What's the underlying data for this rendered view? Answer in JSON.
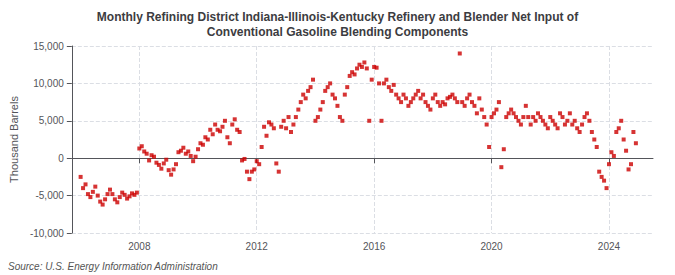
{
  "chart_data": {
    "type": "scatter",
    "title": "Monthly Refining District Indiana-Illinois-Kentucky Refinery and Blender Net Input of\nConventional Gasoline Blending Components",
    "ylabel": "Thousand Barrels",
    "annotations": [
      "Source: U.S. Energy Information Administration"
    ],
    "color": "#CC0000",
    "marker": "square",
    "grid": true,
    "xlim": [
      2005.7,
      2025.5
    ],
    "xticks": [
      2008,
      2012,
      2016,
      2020,
      2024
    ],
    "ylim": [
      -10000,
      15000
    ],
    "yticks": [
      {
        "value": -10000,
        "label": "-10,000"
      },
      {
        "value": -5000,
        "label": "-5,000"
      },
      0,
      {
        "value": 5000,
        "label": "5,000"
      },
      {
        "value": 10000,
        "label": "10,000"
      },
      {
        "value": 15000,
        "label": "15,000"
      }
    ],
    "x": [
      2006.0,
      2006.083,
      2006.167,
      2006.25,
      2006.333,
      2006.417,
      2006.5,
      2006.583,
      2006.667,
      2006.75,
      2006.833,
      2006.917,
      2007.0,
      2007.083,
      2007.167,
      2007.25,
      2007.333,
      2007.417,
      2007.5,
      2007.583,
      2007.667,
      2007.75,
      2007.833,
      2007.917,
      2008.0,
      2008.083,
      2008.167,
      2008.25,
      2008.333,
      2008.417,
      2008.5,
      2008.583,
      2008.667,
      2008.75,
      2008.833,
      2008.917,
      2009.0,
      2009.083,
      2009.167,
      2009.25,
      2009.333,
      2009.417,
      2009.5,
      2009.583,
      2009.667,
      2009.75,
      2009.833,
      2009.917,
      2010.0,
      2010.083,
      2010.167,
      2010.25,
      2010.333,
      2010.417,
      2010.5,
      2010.583,
      2010.667,
      2010.75,
      2010.833,
      2010.917,
      2011.0,
      2011.083,
      2011.167,
      2011.25,
      2011.333,
      2011.417,
      2011.5,
      2011.583,
      2011.667,
      2011.75,
      2011.833,
      2011.917,
      2012.0,
      2012.083,
      2012.167,
      2012.25,
      2012.333,
      2012.417,
      2012.5,
      2012.583,
      2012.667,
      2012.75,
      2012.833,
      2012.917,
      2013.0,
      2013.083,
      2013.167,
      2013.25,
      2013.333,
      2013.417,
      2013.5,
      2013.583,
      2013.667,
      2013.75,
      2013.833,
      2013.917,
      2014.0,
      2014.083,
      2014.167,
      2014.25,
      2014.333,
      2014.417,
      2014.5,
      2014.583,
      2014.667,
      2014.75,
      2014.833,
      2014.917,
      2015.0,
      2015.083,
      2015.167,
      2015.25,
      2015.333,
      2015.417,
      2015.5,
      2015.583,
      2015.667,
      2015.75,
      2015.833,
      2015.917,
      2016.0,
      2016.083,
      2016.167,
      2016.25,
      2016.333,
      2016.417,
      2016.5,
      2016.583,
      2016.667,
      2016.75,
      2016.833,
      2016.917,
      2017.0,
      2017.083,
      2017.167,
      2017.25,
      2017.333,
      2017.417,
      2017.5,
      2017.583,
      2017.667,
      2017.75,
      2017.833,
      2017.917,
      2018.0,
      2018.083,
      2018.167,
      2018.25,
      2018.333,
      2018.417,
      2018.5,
      2018.583,
      2018.667,
      2018.75,
      2018.833,
      2018.917,
      2019.0,
      2019.083,
      2019.167,
      2019.25,
      2019.333,
      2019.417,
      2019.5,
      2019.583,
      2019.667,
      2019.75,
      2019.833,
      2019.917,
      2020.0,
      2020.083,
      2020.167,
      2020.25,
      2020.333,
      2020.417,
      2020.5,
      2020.583,
      2020.667,
      2020.75,
      2020.833,
      2020.917,
      2021.0,
      2021.083,
      2021.167,
      2021.25,
      2021.333,
      2021.417,
      2021.5,
      2021.583,
      2021.667,
      2021.75,
      2021.833,
      2021.917,
      2022.0,
      2022.083,
      2022.167,
      2022.25,
      2022.333,
      2022.417,
      2022.5,
      2022.583,
      2022.667,
      2022.75,
      2022.833,
      2022.917,
      2023.0,
      2023.083,
      2023.167,
      2023.25,
      2023.333,
      2023.417,
      2023.5,
      2023.583,
      2023.667,
      2023.75,
      2023.833,
      2023.917,
      2024.0,
      2024.083,
      2024.167,
      2024.25,
      2024.333,
      2024.417,
      2024.5,
      2024.583,
      2024.667,
      2024.75,
      2024.833,
      2024.917
    ],
    "values": [
      -2500,
      -4000,
      -3500,
      -4800,
      -5200,
      -4500,
      -3800,
      -5000,
      -5800,
      -6200,
      -5500,
      -4800,
      -4200,
      -4800,
      -5500,
      -5900,
      -5200,
      -4600,
      -4900,
      -5400,
      -5100,
      -4700,
      -4900,
      -4600,
      1300,
      1600,
      900,
      600,
      -300,
      400,
      200,
      -600,
      -900,
      -1400,
      -700,
      -200,
      -1600,
      -2200,
      -1500,
      -800,
      800,
      1000,
      1400,
      600,
      900,
      300,
      -400,
      200,
      1200,
      2000,
      1800,
      2800,
      2500,
      3800,
      3200,
      4500,
      3800,
      3600,
      4200,
      5000,
      2800,
      2000,
      4500,
      5200,
      3800,
      3500,
      -300,
      -100,
      -1800,
      -2800,
      -1800,
      -1500,
      -400,
      -800,
      1500,
      4200,
      3000,
      4800,
      4500,
      4000,
      -700,
      -1800,
      4200,
      5000,
      4000,
      5500,
      3500,
      4500,
      5500,
      6500,
      7500,
      8500,
      8000,
      9000,
      9500,
      10500,
      5000,
      5500,
      6500,
      7500,
      9000,
      9500,
      10000,
      8500,
      8000,
      7000,
      5500,
      5000,
      8500,
      9500,
      11000,
      11500,
      11200,
      12000,
      12500,
      12200,
      12800,
      12000,
      5000,
      10500,
      12200,
      12100,
      10000,
      5000,
      10000,
      10500,
      9500,
      9000,
      9800,
      8500,
      8000,
      7500,
      8500,
      8000,
      7000,
      7500,
      8000,
      8500,
      9000,
      8000,
      8500,
      7500,
      7000,
      6500,
      8000,
      8500,
      7500,
      7000,
      7500,
      7200,
      8000,
      8200,
      8500,
      8000,
      7500,
      14000,
      7500,
      7000,
      8000,
      8500,
      7500,
      7000,
      6000,
      8000,
      6500,
      5500,
      4500,
      1500,
      5500,
      6000,
      6500,
      7500,
      -1200,
      1200,
      5500,
      6000,
      6500,
      6000,
      5500,
      5000,
      4500,
      5500,
      7000,
      5500,
      4500,
      5500,
      5000,
      6000,
      5500,
      5000,
      4500,
      4000,
      5500,
      5000,
      4500,
      4000,
      6000,
      5500,
      4500,
      5000,
      6000,
      4500,
      5000,
      4000,
      3500,
      4500,
      5500,
      6000,
      5000,
      3500,
      2500,
      1500,
      -1800,
      -2500,
      -3000,
      -4000,
      -800,
      800,
      300,
      3500,
      4000,
      5000,
      2500,
      1000,
      -1500,
      -800,
      3500,
      2000
    ]
  }
}
